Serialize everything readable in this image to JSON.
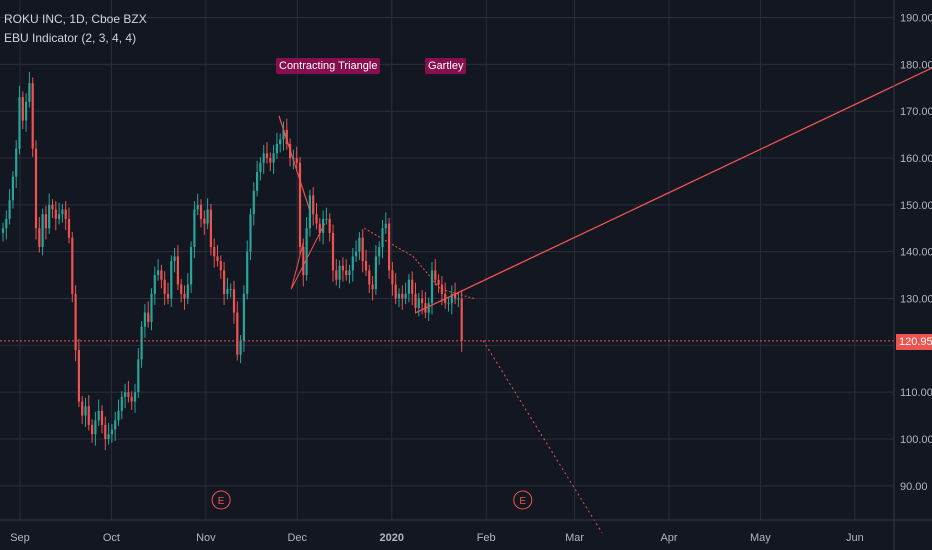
{
  "header": {
    "symbol_line": "ROKU INC, 1D, Cboe BZX",
    "indicator_line": "EBU Indicator (2, 3, 4, 4)"
  },
  "annotations": {
    "pattern_1": "Contracting Triangle",
    "pattern_2": "Gartley",
    "earnings_marker": "E"
  },
  "last_price_label": "120.95",
  "colors": {
    "background": "#131722",
    "grid": "#2a2e39",
    "up": "#26a69a",
    "down": "#ef5350",
    "pattern_label_bg": "#880e4f",
    "trendline": "#ef5350"
  },
  "chart_data": {
    "type": "candlestick",
    "x_axis": {
      "tick_labels": [
        "Sep",
        "Oct",
        "Nov",
        "Dec",
        "2020",
        "Feb",
        "Mar",
        "Apr",
        "May",
        "Jun"
      ]
    },
    "y_axis": {
      "position": "right",
      "ylim": [
        82,
        194
      ],
      "tick_labels": [
        "90.00",
        "100.00",
        "110.00",
        "120.00",
        "130.00",
        "140.00",
        "150.00",
        "160.00",
        "170.00",
        "180.00",
        "190.00"
      ],
      "tick_values": [
        90,
        100,
        110,
        120,
        130,
        140,
        150,
        160,
        170,
        180,
        190
      ]
    },
    "grid": true,
    "last_price": 120.95,
    "closes": [
      145,
      147,
      151,
      156,
      162,
      173,
      168,
      172,
      176,
      162,
      145,
      141,
      148,
      145,
      150,
      149,
      147,
      148,
      149,
      147,
      143,
      131,
      119,
      108,
      105,
      107,
      103,
      101,
      104,
      106,
      103,
      100,
      101,
      102,
      104,
      106,
      109,
      110,
      109,
      108,
      110,
      117,
      124,
      127,
      125,
      131,
      135,
      136,
      134,
      131,
      130,
      138,
      139,
      133,
      131,
      130,
      133,
      141,
      149,
      150,
      147,
      146,
      149,
      141,
      139,
      138,
      136,
      131,
      132,
      132,
      127,
      118,
      121,
      131,
      140,
      148,
      153,
      157,
      159,
      161,
      160,
      159,
      161,
      163,
      164,
      166,
      163,
      160,
      160,
      159,
      141,
      135,
      145,
      152,
      148,
      146,
      144,
      147,
      147,
      144,
      136,
      134,
      137,
      136,
      135,
      136,
      139,
      140,
      143,
      138,
      136,
      133,
      132,
      139,
      141,
      145,
      146,
      136,
      133,
      130,
      131,
      130,
      131,
      134,
      131,
      128,
      130,
      129,
      127,
      129,
      136,
      134,
      133,
      131,
      129,
      129,
      131,
      130,
      130,
      121
    ],
    "series": [
      {
        "name": "Contracting Triangle",
        "x": [
          "2019-11-25",
          "2019-12-05",
          "2019-12-10",
          "2019-12-03",
          "2019-11-29"
        ],
        "y": [
          169,
          149,
          146,
          142,
          132
        ]
      },
      {
        "name": "Gartley",
        "x": [
          "2019-12-23",
          "2020-01-08",
          "2020-01-17",
          "2020-01-28",
          "2020-01-10"
        ],
        "y": [
          145,
          139,
          132,
          130,
          126
        ]
      },
      {
        "name": "Rising trendline",
        "x": [
          "2020-01-09",
          "2020-07-15"
        ],
        "y": [
          127,
          185
        ]
      },
      {
        "name": "Projection",
        "x": [
          "2020-01-31",
          "2020-03-10"
        ],
        "y": [
          121,
          80
        ]
      }
    ],
    "earnings_markers": [
      "2019-11-06",
      "2020-02-13"
    ]
  }
}
